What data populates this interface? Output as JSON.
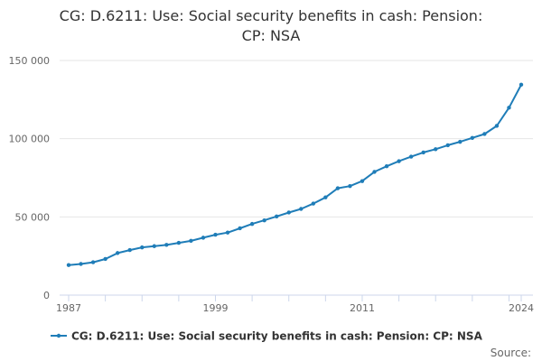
{
  "chart_data": {
    "type": "line",
    "title_lines": [
      "CG: D.6211: Use: Social security benefits in cash: Pension:",
      "CP: NSA"
    ],
    "x": [
      1987,
      1988,
      1989,
      1990,
      1991,
      1992,
      1993,
      1994,
      1995,
      1996,
      1997,
      1998,
      1999,
      2000,
      2001,
      2002,
      2003,
      2004,
      2005,
      2006,
      2007,
      2008,
      2009,
      2010,
      2011,
      2012,
      2013,
      2014,
      2015,
      2016,
      2017,
      2018,
      2019,
      2020,
      2021,
      2022,
      2023,
      2024
    ],
    "series": [
      {
        "name": "CG: D.6211: Use: Social security benefits in cash: Pension: CP: NSA",
        "color": "#1f7db8",
        "values": [
          19200,
          19900,
          21000,
          23100,
          26900,
          28800,
          30500,
          31300,
          32100,
          33400,
          34700,
          36700,
          38600,
          40000,
          42700,
          45500,
          47800,
          50300,
          52800,
          55100,
          58500,
          62500,
          68300,
          69700,
          72900,
          78800,
          82400,
          85600,
          88500,
          91200,
          93300,
          95800,
          98000,
          100500,
          103000,
          108200,
          119800,
          134500
        ]
      }
    ],
    "x_ticks": [
      "1987",
      "1999",
      "2011",
      "2024"
    ],
    "y_ticks": [
      "0",
      "50 000",
      "100 000",
      "150 000"
    ],
    "y_tick_values": [
      0,
      50000,
      100000,
      150000
    ],
    "ylim": [
      0,
      150000
    ],
    "xlim": [
      1987,
      2024
    ],
    "grid": true,
    "legend_position": "bottom",
    "source_label": "Source:"
  }
}
